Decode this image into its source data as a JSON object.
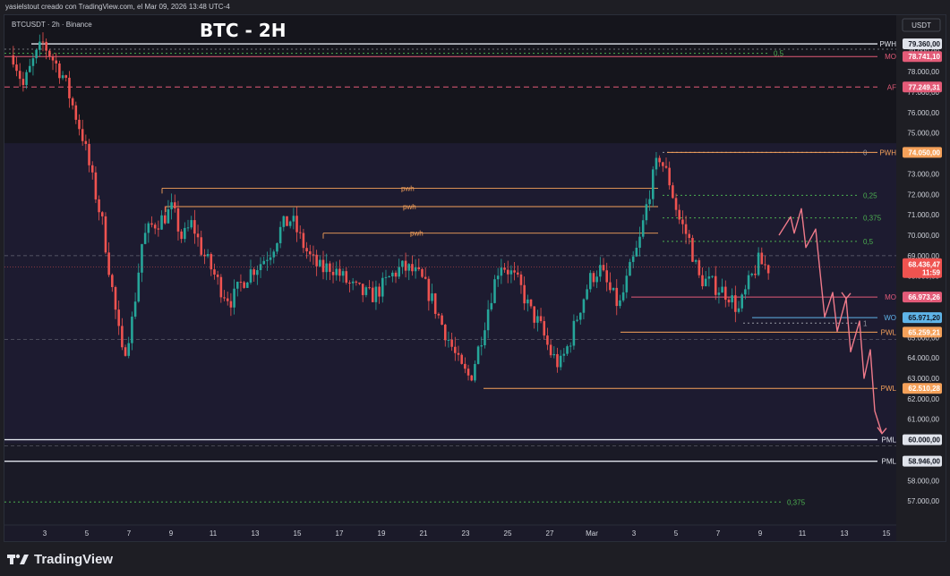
{
  "header": {
    "author_line": "yasielstout creado con TradingView.com, el Mar 09, 2026 13:48 UTC-4"
  },
  "chart_meta": {
    "symbol_line": "BTCUSDT · 2h · Binance",
    "title": "BTC - 2H",
    "currency": "USDT"
  },
  "footer": {
    "brand": "TradingView"
  },
  "colors": {
    "up": "#26a69a",
    "down": "#ef5350",
    "grid_bg": "#1b1a29",
    "orange": "#f5a15a",
    "pink": "#e35b78",
    "green_dot": "#4caf50",
    "white": "#e0e3eb"
  },
  "chart_data": {
    "type": "candlestick",
    "title": "BTC - 2H",
    "symbol": "BTCUSDT",
    "timeframe": "2h",
    "exchange": "Binance",
    "ylim": [
      56000,
      80500
    ],
    "yticks": [
      80000,
      79000,
      78000,
      77000,
      76000,
      75000,
      74000,
      73000,
      72000,
      71000,
      70000,
      69000,
      68000,
      67000,
      66000,
      65000,
      64000,
      63000,
      62000,
      61000,
      60000,
      59000,
      58000,
      57000
    ],
    "ytick_labels": [
      "80.000,00",
      "79.000,00",
      "78.000,00",
      "77.000,00",
      "76.000,00",
      "75.000,00",
      "74.000,00",
      "73.000,00",
      "72.000,00",
      "71.000,00",
      "70.000,00",
      "69.000,00",
      "68.000,00",
      "67.000,00",
      "66.000,00",
      "65.000,00",
      "64.000,00",
      "63.000,00",
      "62.000,00",
      "61.000,00",
      "60.000,00",
      "59.000,00",
      "58.000,00",
      "57.000,00"
    ],
    "xticks": [
      "3",
      "5",
      "7",
      "9",
      "11",
      "13",
      "15",
      "17",
      "19",
      "21",
      "23",
      "25",
      "27",
      "Mar",
      "3",
      "5",
      "7",
      "9",
      "11",
      "13",
      "15"
    ],
    "price_path": [
      [
        0,
        78800
      ],
      [
        1,
        77300
      ],
      [
        2,
        78500
      ],
      [
        3,
        79400
      ],
      [
        4,
        78600
      ],
      [
        5,
        77800
      ],
      [
        6,
        76300
      ],
      [
        7,
        74800
      ],
      [
        8,
        72600
      ],
      [
        9,
        70500
      ],
      [
        10,
        67200
      ],
      [
        11,
        64000
      ],
      [
        12,
        65900
      ],
      [
        13,
        69800
      ],
      [
        14,
        70500
      ],
      [
        15,
        70800
      ],
      [
        16,
        71300
      ],
      [
        17,
        69800
      ],
      [
        18,
        70600
      ],
      [
        19,
        69200
      ],
      [
        20,
        68300
      ],
      [
        21,
        67300
      ],
      [
        22,
        66800
      ],
      [
        23,
        67700
      ],
      [
        24,
        68300
      ],
      [
        25,
        68700
      ],
      [
        26,
        69300
      ],
      [
        27,
        70400
      ],
      [
        28,
        70800
      ],
      [
        29,
        69700
      ],
      [
        30,
        68800
      ],
      [
        31,
        68300
      ],
      [
        32,
        68500
      ],
      [
        33,
        68000
      ],
      [
        34,
        67500
      ],
      [
        35,
        67200
      ],
      [
        36,
        67000
      ],
      [
        37,
        67400
      ],
      [
        38,
        68000
      ],
      [
        39,
        68400
      ],
      [
        40,
        68300
      ],
      [
        41,
        67900
      ],
      [
        42,
        67000
      ],
      [
        43,
        65800
      ],
      [
        44,
        64700
      ],
      [
        45,
        63500
      ],
      [
        46,
        63000
      ],
      [
        47,
        64800
      ],
      [
        48,
        66900
      ],
      [
        49,
        68700
      ],
      [
        50,
        68200
      ],
      [
        51,
        67500
      ],
      [
        52,
        66300
      ],
      [
        53,
        65600
      ],
      [
        54,
        64300
      ],
      [
        55,
        63600
      ],
      [
        56,
        64800
      ],
      [
        57,
        66400
      ],
      [
        58,
        67800
      ],
      [
        59,
        68400
      ],
      [
        60,
        67300
      ],
      [
        61,
        66500
      ],
      [
        62,
        68200
      ],
      [
        63,
        69600
      ],
      [
        64,
        72100
      ],
      [
        65,
        73900
      ],
      [
        66,
        72700
      ],
      [
        67,
        70800
      ],
      [
        68,
        69800
      ],
      [
        69,
        67900
      ],
      [
        70,
        67700
      ],
      [
        71,
        67400
      ],
      [
        72,
        67100
      ],
      [
        73,
        66300
      ],
      [
        74,
        67600
      ],
      [
        75,
        68700
      ],
      [
        76,
        68400
      ]
    ],
    "levels": [
      {
        "name": "PWH",
        "price": 79360,
        "label": "79.360,00",
        "color": "#e0e3eb",
        "style": "solid"
      },
      {
        "name": "MO",
        "price": 78741.1,
        "label": "78.741,10",
        "color": "#e35b78",
        "style": "solid"
      },
      {
        "name": "AF",
        "price": 77249.31,
        "label": "77.249,31",
        "color": "#e35b78",
        "style": "dashed"
      },
      {
        "name": "PWH",
        "price": 74050,
        "label": "74.050,00",
        "color": "#f5a15a",
        "style": "solid"
      },
      {
        "name": "MO",
        "price": 66973.26,
        "label": "66.973,26",
        "color": "#e35b78",
        "style": "solid"
      },
      {
        "name": "WO",
        "price": 65971.2,
        "label": "65.971,20",
        "color": "#5fb4e8",
        "style": "solid"
      },
      {
        "name": "PWL",
        "price": 65259.21,
        "label": "65.259,21",
        "color": "#f5a15a",
        "style": "solid"
      },
      {
        "name": "PWL",
        "price": 62510.28,
        "label": "62.510,28",
        "color": "#f5a15a",
        "style": "solid"
      },
      {
        "name": "PML",
        "price": 60000,
        "label": "60.000,00",
        "color": "#e0e3eb",
        "style": "solid"
      },
      {
        "name": "PML",
        "price": 58946,
        "label": "58.946,00",
        "color": "#e0e3eb",
        "style": "solid"
      }
    ],
    "current_price": {
      "label": "68.436,47",
      "countdown": "11:59",
      "price": 68436.47
    },
    "fib_levels": [
      {
        "label": "0,5",
        "price": 78900
      },
      {
        "label": "0,25",
        "price": 71950
      },
      {
        "label": "0,375",
        "price": 70850
      },
      {
        "label": "0,5",
        "price": 69700
      },
      {
        "label": "0",
        "price": 74050
      },
      {
        "label": "1",
        "price": 65700
      },
      {
        "label": "0,375",
        "price": 56950
      }
    ],
    "pwh_segments": [
      {
        "label": "pwh",
        "price": 72300
      },
      {
        "label": "pwh",
        "price": 71400
      },
      {
        "label": "pwh",
        "price": 70100
      }
    ]
  }
}
